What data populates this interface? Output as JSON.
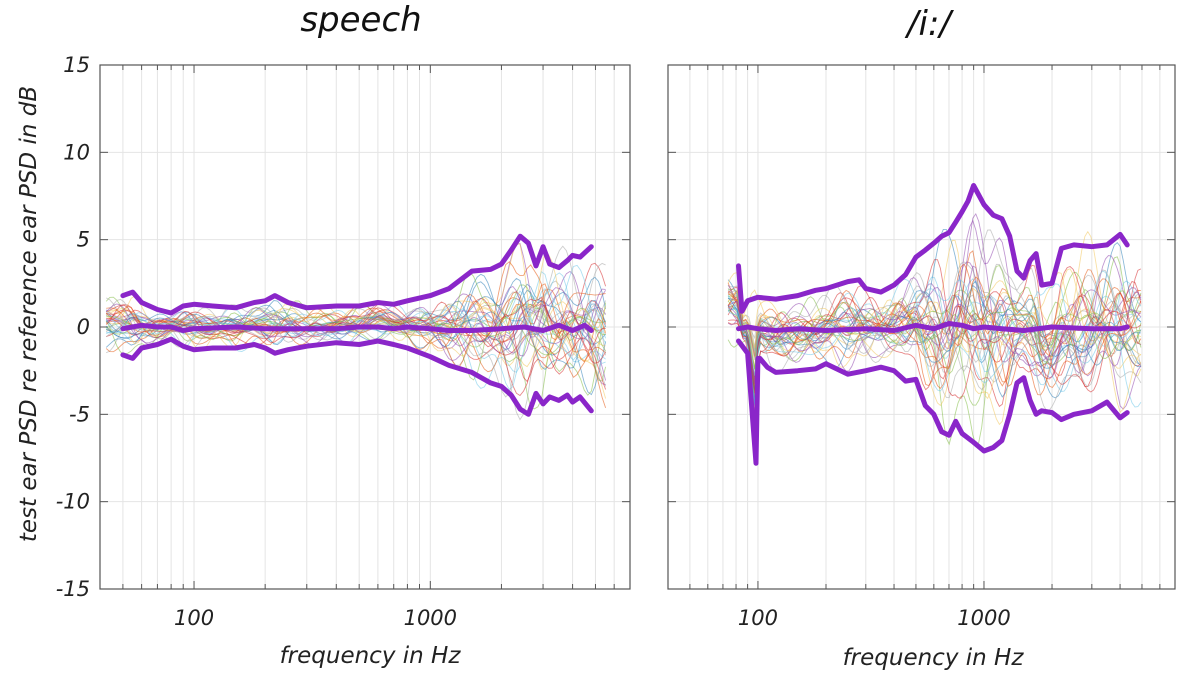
{
  "chart_data": [
    {
      "type": "line",
      "title": "speech",
      "xlabel": "frequency in Hz",
      "ylabel": "test ear PSD re reference ear PSD in dB",
      "xscale": "log",
      "xlim": [
        40,
        7000
      ],
      "ylim": [
        -15,
        15
      ],
      "xticks": [
        100,
        1000
      ],
      "xtick_labels": [
        "100",
        "1000"
      ],
      "yticks": [
        15,
        10,
        5,
        0,
        -5,
        -10,
        -15
      ],
      "ytick_labels": [
        "15",
        "10",
        "5",
        "0",
        "-5",
        "-10",
        "-15"
      ],
      "grid": true,
      "series": [
        {
          "name": "upper bound",
          "role": "bound",
          "x": [
            50,
            55,
            60,
            70,
            80,
            90,
            100,
            120,
            150,
            180,
            200,
            220,
            250,
            300,
            400,
            500,
            600,
            700,
            800,
            1000,
            1200,
            1500,
            1800,
            2000,
            2200,
            2400,
            2600,
            2800,
            3000,
            3200,
            3500,
            3800,
            4000,
            4300,
            4800
          ],
          "y": [
            1.8,
            2.0,
            1.4,
            1.0,
            0.8,
            1.2,
            1.3,
            1.2,
            1.1,
            1.4,
            1.5,
            1.8,
            1.4,
            1.1,
            1.2,
            1.2,
            1.4,
            1.3,
            1.5,
            1.8,
            2.2,
            3.2,
            3.3,
            3.6,
            4.4,
            5.2,
            4.8,
            3.5,
            4.6,
            3.6,
            3.4,
            3.8,
            4.1,
            4.0,
            4.6
          ]
        },
        {
          "name": "mean",
          "role": "mean",
          "x": [
            50,
            60,
            70,
            80,
            90,
            100,
            150,
            200,
            300,
            400,
            500,
            600,
            700,
            800,
            1000,
            1200,
            1500,
            2000,
            2500,
            3000,
            3500,
            4000,
            4500,
            4800
          ],
          "y": [
            -0.1,
            0.1,
            0.0,
            0.0,
            -0.2,
            -0.1,
            0.0,
            -0.1,
            -0.1,
            -0.1,
            0.0,
            0.0,
            -0.1,
            0.0,
            -0.1,
            -0.2,
            -0.2,
            -0.1,
            0.0,
            -0.2,
            0.1,
            -0.2,
            0.1,
            -0.2
          ]
        },
        {
          "name": "lower bound",
          "role": "bound",
          "x": [
            50,
            55,
            60,
            70,
            80,
            90,
            100,
            120,
            150,
            180,
            200,
            220,
            250,
            300,
            400,
            500,
            600,
            700,
            800,
            1000,
            1200,
            1500,
            1800,
            2000,
            2200,
            2400,
            2600,
            2800,
            3000,
            3200,
            3500,
            3800,
            4000,
            4300,
            4800
          ],
          "y": [
            -1.6,
            -1.8,
            -1.2,
            -1.0,
            -0.7,
            -1.1,
            -1.3,
            -1.2,
            -1.2,
            -1.0,
            -1.2,
            -1.5,
            -1.3,
            -1.1,
            -0.9,
            -1.0,
            -0.8,
            -1.0,
            -1.2,
            -1.7,
            -2.2,
            -2.6,
            -3.2,
            -3.4,
            -3.9,
            -4.7,
            -5.0,
            -3.8,
            -4.4,
            -4.0,
            -4.2,
            -3.9,
            -4.3,
            -4.0,
            -4.8
          ]
        }
      ]
    },
    {
      "type": "line",
      "title": "/i:/",
      "xlabel": "frequency in Hz",
      "ylabel": "",
      "xscale": "log",
      "xlim": [
        40,
        7000
      ],
      "ylim": [
        -15,
        15
      ],
      "xticks": [
        100,
        1000
      ],
      "xtick_labels": [
        "100",
        "1000"
      ],
      "yticks": [
        15,
        10,
        5,
        0,
        -5,
        -10,
        -15
      ],
      "ytick_labels": [
        "",
        "",
        "",
        "",
        "",
        "",
        ""
      ],
      "grid": true,
      "series": [
        {
          "name": "upper bound",
          "role": "bound",
          "x": [
            82,
            85,
            90,
            100,
            120,
            150,
            180,
            200,
            250,
            280,
            300,
            350,
            400,
            450,
            500,
            550,
            600,
            650,
            700,
            750,
            800,
            850,
            900,
            1000,
            1100,
            1200,
            1300,
            1400,
            1500,
            1600,
            1700,
            1800,
            2000,
            2200,
            2500,
            3000,
            3500,
            4000,
            4300
          ],
          "y": [
            3.5,
            0.9,
            1.5,
            1.7,
            1.6,
            1.8,
            2.1,
            2.2,
            2.6,
            2.7,
            2.2,
            2.0,
            2.4,
            3.0,
            4.0,
            4.4,
            4.8,
            5.2,
            5.4,
            6.0,
            6.6,
            7.2,
            8.1,
            7.0,
            6.4,
            6.2,
            5.2,
            3.2,
            2.8,
            3.8,
            4.2,
            2.4,
            2.5,
            4.5,
            4.7,
            4.6,
            4.7,
            5.3,
            4.7
          ]
        },
        {
          "name": "mean",
          "role": "mean",
          "x": [
            82,
            90,
            100,
            120,
            150,
            200,
            300,
            400,
            500,
            600,
            700,
            800,
            900,
            1000,
            1200,
            1500,
            2000,
            3000,
            4000,
            4300
          ],
          "y": [
            -0.1,
            0.0,
            -0.1,
            -0.2,
            -0.1,
            -0.2,
            -0.1,
            -0.2,
            0.1,
            -0.1,
            0.2,
            0.1,
            -0.1,
            0.0,
            -0.1,
            -0.2,
            0.0,
            -0.1,
            -0.1,
            0.0
          ]
        },
        {
          "name": "lower bound",
          "role": "bound",
          "x": [
            82,
            90,
            98,
            100,
            102,
            110,
            120,
            150,
            180,
            200,
            250,
            300,
            350,
            400,
            450,
            500,
            550,
            600,
            650,
            700,
            750,
            800,
            900,
            1000,
            1100,
            1200,
            1300,
            1400,
            1500,
            1600,
            1700,
            1800,
            2000,
            2200,
            2500,
            3000,
            3500,
            4000,
            4300
          ],
          "y": [
            -0.8,
            -1.5,
            -7.8,
            -1.8,
            -1.8,
            -2.3,
            -2.6,
            -2.5,
            -2.4,
            -2.1,
            -2.7,
            -2.5,
            -2.3,
            -2.5,
            -3.1,
            -3.0,
            -4.5,
            -5.0,
            -6.0,
            -6.2,
            -5.4,
            -6.1,
            -6.6,
            -7.1,
            -6.9,
            -6.5,
            -5.0,
            -3.2,
            -2.9,
            -4.2,
            -5.0,
            -4.8,
            -4.9,
            -5.3,
            -5.0,
            -4.8,
            -4.3,
            -5.2,
            -4.9
          ]
        }
      ]
    }
  ],
  "individual_curves": {
    "count_per_panel": 40,
    "palette": [
      "#2c7fb8",
      "#e6550d",
      "#f2c75a",
      "#8e44ad",
      "#7fbc41",
      "#6ec6e8",
      "#d62728",
      "#a6a6a6"
    ],
    "description_note": "thin multicolored individual-ear traces"
  },
  "colors": {
    "bounds": "#8a26c9",
    "axis": "#555555",
    "grid": "#e4e4e4"
  }
}
